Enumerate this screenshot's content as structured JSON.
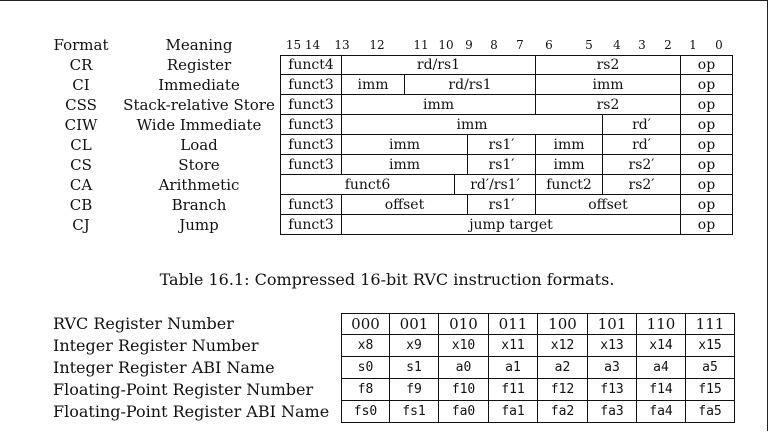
{
  "formats_table": {
    "header_format": "Format",
    "header_meaning": "Meaning",
    "bit_numbers": [
      "15 14",
      "13",
      "12",
      "11",
      "10",
      "9",
      "8",
      "7",
      "6",
      "5",
      "4",
      "3",
      "2",
      "1",
      "0"
    ],
    "rows": [
      {
        "format": "CR",
        "meaning": "Register",
        "fields": [
          "funct4",
          "rd/rs1",
          "rs2",
          "op"
        ]
      },
      {
        "format": "CI",
        "meaning": "Immediate",
        "fields": [
          "funct3",
          "imm",
          "rd/rs1",
          "imm",
          "op"
        ]
      },
      {
        "format": "CSS",
        "meaning": "Stack-relative Store",
        "fields": [
          "funct3",
          "imm",
          "rs2",
          "op"
        ]
      },
      {
        "format": "CIW",
        "meaning": "Wide Immediate",
        "fields": [
          "funct3",
          "imm",
          "rd′",
          "op"
        ]
      },
      {
        "format": "CL",
        "meaning": "Load",
        "fields": [
          "funct3",
          "imm",
          "rs1′",
          "imm",
          "rd′",
          "op"
        ]
      },
      {
        "format": "CS",
        "meaning": "Store",
        "fields": [
          "funct3",
          "imm",
          "rs1′",
          "imm",
          "rs2′",
          "op"
        ]
      },
      {
        "format": "CA",
        "meaning": "Arithmetic",
        "fields": [
          "funct6",
          "rd′/rs1′",
          "funct2",
          "rs2′",
          "op"
        ]
      },
      {
        "format": "CB",
        "meaning": "Branch",
        "fields": [
          "funct3",
          "offset",
          "rs1′",
          "offset",
          "op"
        ]
      },
      {
        "format": "CJ",
        "meaning": "Jump",
        "fields": [
          "funct3",
          "jump target",
          "op"
        ]
      }
    ],
    "caption": "Table 16.1: Compressed 16-bit RVC instruction formats."
  },
  "register_table": {
    "row_labels": [
      "RVC Register Number",
      "Integer Register Number",
      "Integer Register ABI Name",
      "Floating-Point Register Number",
      "Floating-Point Register ABI Name"
    ],
    "rows": [
      [
        "000",
        "001",
        "010",
        "011",
        "100",
        "101",
        "110",
        "111"
      ],
      [
        "x8",
        "x9",
        "x10",
        "x11",
        "x12",
        "x13",
        "x14",
        "x15"
      ],
      [
        "s0",
        "s1",
        "a0",
        "a1",
        "a2",
        "a3",
        "a4",
        "a5"
      ],
      [
        "f8",
        "f9",
        "f10",
        "f11",
        "f12",
        "f13",
        "f14",
        "f15"
      ],
      [
        "fs0",
        "fs1",
        "fa0",
        "fa1",
        "fa2",
        "fa3",
        "fa4",
        "fa5"
      ]
    ]
  }
}
